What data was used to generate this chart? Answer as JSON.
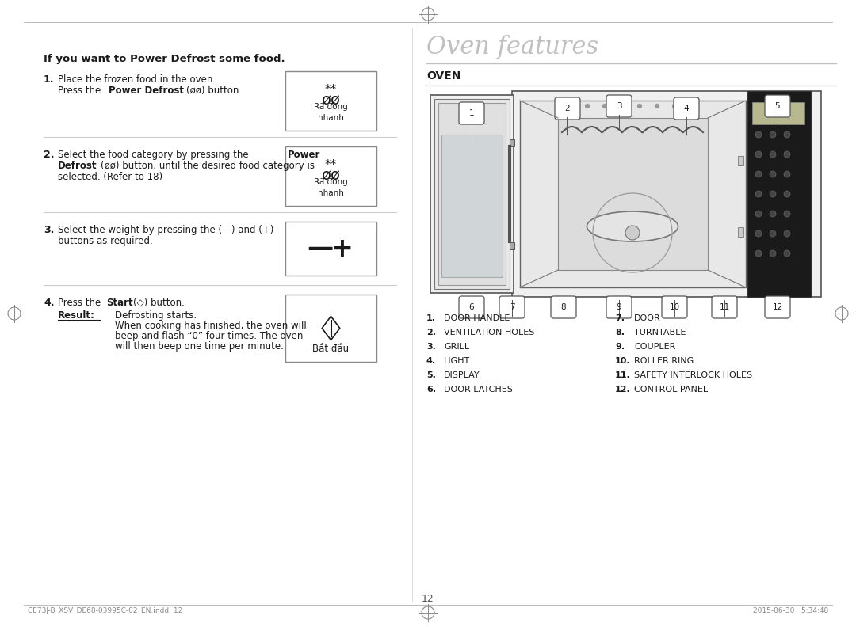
{
  "background_color": "#ffffff",
  "page_num": "12",
  "footer_left": "CE73J-B_XSV_DE68-03995C-02_EN.indd  12",
  "footer_right": "2015-06-30   5:34:48",
  "left_section": {
    "heading": "If you want to Power Defrost some food.",
    "parts_left": [
      {
        "num": "1.",
        "name": "DOOR HANDLE"
      },
      {
        "num": "2.",
        "name": "VENTILATION HOLES"
      },
      {
        "num": "3.",
        "name": "GRILL"
      },
      {
        "num": "4.",
        "name": "LIGHT"
      },
      {
        "num": "5.",
        "name": "DISPLAY"
      },
      {
        "num": "6.",
        "name": "DOOR LATCHES"
      }
    ]
  },
  "right_section": {
    "title": "Oven features",
    "subtitle": "OVEN",
    "parts_left": [
      {
        "num": "1.",
        "name": "DOOR HANDLE"
      },
      {
        "num": "2.",
        "name": "VENTILATION HOLES"
      },
      {
        "num": "3.",
        "name": "GRILL"
      },
      {
        "num": "4.",
        "name": "LIGHT"
      },
      {
        "num": "5.",
        "name": "DISPLAY"
      },
      {
        "num": "6.",
        "name": "DOOR LATCHES"
      }
    ],
    "parts_right": [
      {
        "num": "7.",
        "name": "DOOR"
      },
      {
        "num": "8.",
        "name": "TURNTABLE"
      },
      {
        "num": "9.",
        "name": "COUPLER"
      },
      {
        "num": "10.",
        "name": "ROLLER RING"
      },
      {
        "num": "11.",
        "name": "SAFETY INTERLOCK HOLES"
      },
      {
        "num": "12.",
        "name": "CONTROL PANEL"
      }
    ]
  },
  "divider_color": "#cccccc",
  "text_color": "#1a1a1a",
  "title_color": "#999999",
  "border_color": "#aaaaaa"
}
